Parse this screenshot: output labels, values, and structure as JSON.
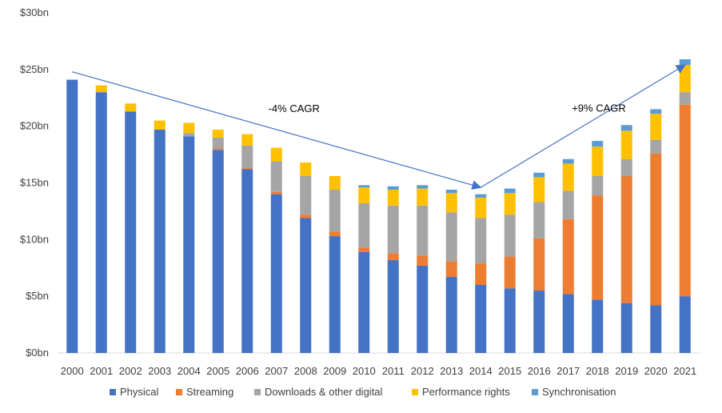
{
  "chart_data": {
    "type": "bar",
    "stacked": true,
    "categories": [
      "2000",
      "2001",
      "2002",
      "2003",
      "2004",
      "2005",
      "2006",
      "2007",
      "2008",
      "2009",
      "2010",
      "2011",
      "2012",
      "2013",
      "2014",
      "2015",
      "2016",
      "2017",
      "2018",
      "2019",
      "2020",
      "2021"
    ],
    "series": [
      {
        "name": "Physical",
        "color": "#4472C4",
        "values": [
          24.1,
          23.0,
          21.3,
          19.7,
          19.1,
          17.9,
          16.2,
          14.0,
          11.9,
          10.3,
          8.9,
          8.2,
          7.7,
          6.7,
          6.0,
          5.7,
          5.5,
          5.2,
          4.7,
          4.4,
          4.2,
          5.0
        ]
      },
      {
        "name": "Streaming",
        "color": "#ED7D31",
        "values": [
          0,
          0,
          0,
          0,
          0,
          0.1,
          0.1,
          0.2,
          0.3,
          0.4,
          0.4,
          0.6,
          0.9,
          1.4,
          1.9,
          2.8,
          4.6,
          6.6,
          9.2,
          11.2,
          13.4,
          16.9
        ]
      },
      {
        "name": "Downloads & other digital",
        "color": "#A5A5A5",
        "values": [
          0,
          0,
          0,
          0,
          0.3,
          1.0,
          2.0,
          2.7,
          3.4,
          3.7,
          3.9,
          4.2,
          4.4,
          4.3,
          4.0,
          3.7,
          3.2,
          2.5,
          1.7,
          1.5,
          1.2,
          1.1
        ]
      },
      {
        "name": "Performance rights",
        "color": "#FFC000",
        "values": [
          0,
          0.6,
          0.7,
          0.8,
          0.9,
          0.7,
          1.0,
          1.2,
          1.2,
          1.2,
          1.4,
          1.4,
          1.5,
          1.7,
          1.8,
          1.9,
          2.2,
          2.4,
          2.6,
          2.5,
          2.3,
          2.4
        ]
      },
      {
        "name": "Synchronisation",
        "color": "#5B9BD5",
        "values": [
          0,
          0,
          0,
          0,
          0,
          0,
          0,
          0,
          0,
          0,
          0.2,
          0.3,
          0.3,
          0.3,
          0.3,
          0.4,
          0.4,
          0.4,
          0.5,
          0.5,
          0.4,
          0.5
        ]
      }
    ],
    "y_ticks": [
      "$0bn",
      "$5bn",
      "$10bn",
      "$15bn",
      "$20bn",
      "$25bn",
      "$30bn"
    ],
    "ylim": [
      0,
      30
    ],
    "grid": false,
    "legend_position": "bottom",
    "annotations": [
      {
        "text": "-4% CAGR",
        "from": [
          "2000",
          24.8
        ],
        "to": [
          "2014",
          14.6
        ]
      },
      {
        "text": "+9% CAGR",
        "from": [
          "2014",
          14.6
        ],
        "to": [
          "2021",
          25.4
        ]
      }
    ]
  },
  "colors": {
    "axis": "#D9D9D9",
    "arrow": "#4472C4",
    "text": "#404040"
  }
}
